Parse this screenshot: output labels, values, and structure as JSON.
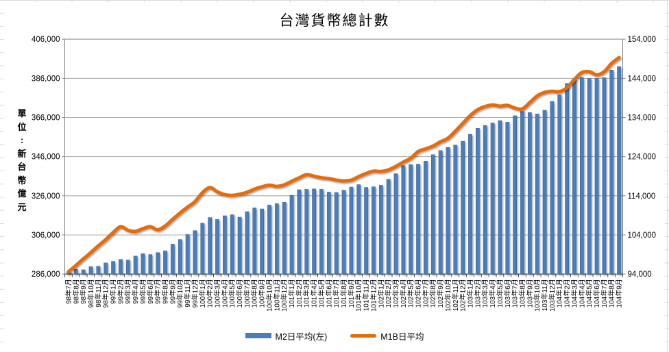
{
  "title": "台灣貨幣總計數",
  "y_axis_unit_label": "單位:新台幣億元",
  "legend": [
    {
      "label": "M2日平均(左)",
      "color": "#4A7EBB",
      "type": "bar"
    },
    {
      "label": "M1B日平均",
      "color": "#E46C0A",
      "type": "line"
    }
  ],
  "colors": {
    "bar_fill": "#4A7EBB",
    "bar_edge": "#35619C",
    "line_stroke": "#E46C0A",
    "gridline": "#9e9e9e",
    "plot_border": "#808080",
    "axis_line": "#4d4d4d",
    "tick_text": "#000000",
    "sheet_gridline": "#d9d9d9"
  },
  "chart_data": {
    "type": "combo",
    "title": "台灣貨幣總計數",
    "grid": true,
    "legend_position": "bottom",
    "categories": [
      "98年7月",
      "98年8月",
      "98年9月",
      "98年10月",
      "98年11月",
      "98年12月",
      "99年1月",
      "99年2月",
      "99年3月",
      "99年4月",
      "99年5月",
      "99年6月",
      "99年7月",
      "99年8月",
      "99年9月",
      "99年10月",
      "99年11月",
      "99年12月",
      "100年1月",
      "100年2月",
      "100年3月",
      "100年4月",
      "100年5月",
      "100年6月",
      "100年7月",
      "100年8月",
      "100年9月",
      "100年10月",
      "100年11月",
      "100年12月",
      "101年1月",
      "101年2月",
      "101年3月",
      "101年4月",
      "101年5月",
      "101年6月",
      "101年7月",
      "101年8月",
      "101年9月",
      "101年10月",
      "101年11月",
      "101年12月",
      "102年1月",
      "102年2月",
      "102年3月",
      "102年4月",
      "102年5月",
      "102年6月",
      "102年7月",
      "102年8月",
      "102年9月",
      "102年10月",
      "102年11月",
      "102年12月",
      "103年1月",
      "103年2月",
      "103年3月",
      "103年4月",
      "103年5月",
      "103年6月",
      "103年7月",
      "103年8月",
      "103年9月",
      "103年10月",
      "103年11月",
      "103年12月",
      "104年1月",
      "104年2月",
      "104年3月",
      "104年4月",
      "104年5月",
      "104年6月",
      "104年7月",
      "104年8月",
      "104年9月"
    ],
    "series": [
      {
        "name": "M2日平均(左)",
        "type": "bar",
        "axis": "left",
        "color": "#4A7EBB",
        "values": [
          287200,
          288500,
          288200,
          289800,
          290000,
          291700,
          292500,
          293500,
          293200,
          295200,
          296400,
          296000,
          297000,
          297900,
          301300,
          303700,
          306200,
          308200,
          312000,
          314900,
          313900,
          315800,
          316300,
          315100,
          317900,
          319800,
          319300,
          321300,
          322000,
          322700,
          326300,
          329100,
          329300,
          329500,
          329300,
          327900,
          327700,
          328800,
          330500,
          331700,
          330300,
          330600,
          331400,
          334500,
          337300,
          341400,
          341900,
          342100,
          343700,
          347000,
          349100,
          350700,
          351900,
          353900,
          357400,
          360500,
          361900,
          363200,
          364400,
          363600,
          366900,
          369100,
          368500,
          367800,
          369700,
          374200,
          377500,
          383400,
          385800,
          386400,
          385900,
          385900,
          386300,
          390200,
          392000
        ]
      },
      {
        "name": "M1B日平均",
        "type": "line",
        "axis": "right",
        "color": "#E46C0A",
        "values": [
          94600,
          96200,
          97900,
          99500,
          101200,
          102800,
          104600,
          106100,
          105200,
          104900,
          105600,
          106100,
          105300,
          106300,
          108000,
          109600,
          111100,
          112500,
          114800,
          116100,
          115000,
          114300,
          114100,
          114400,
          114900,
          115700,
          116300,
          116700,
          116400,
          116800,
          117700,
          118600,
          119400,
          119000,
          118600,
          118400,
          118000,
          117800,
          118000,
          118900,
          119700,
          120300,
          120200,
          120600,
          121500,
          122600,
          123600,
          125300,
          126000,
          126700,
          127800,
          128700,
          130500,
          132500,
          134500,
          136000,
          136800,
          137200,
          136900,
          137100,
          136400,
          136200,
          137800,
          139500,
          140400,
          140700,
          140600,
          141600,
          143700,
          145500,
          145700,
          144900,
          145700,
          147800,
          149300
        ]
      }
    ],
    "left_axis": {
      "min": 286000,
      "max": 406000,
      "step": 20000,
      "tick_labels": [
        "286,000",
        "306,000",
        "326,000",
        "346,000",
        "366,000",
        "386,000",
        "406,000"
      ]
    },
    "right_axis": {
      "min": 94000,
      "max": 154000,
      "step": 10000,
      "tick_labels": [
        "94,000",
        "104,000",
        "114,000",
        "124,000",
        "134,000",
        "144,000",
        "154,000"
      ]
    }
  }
}
